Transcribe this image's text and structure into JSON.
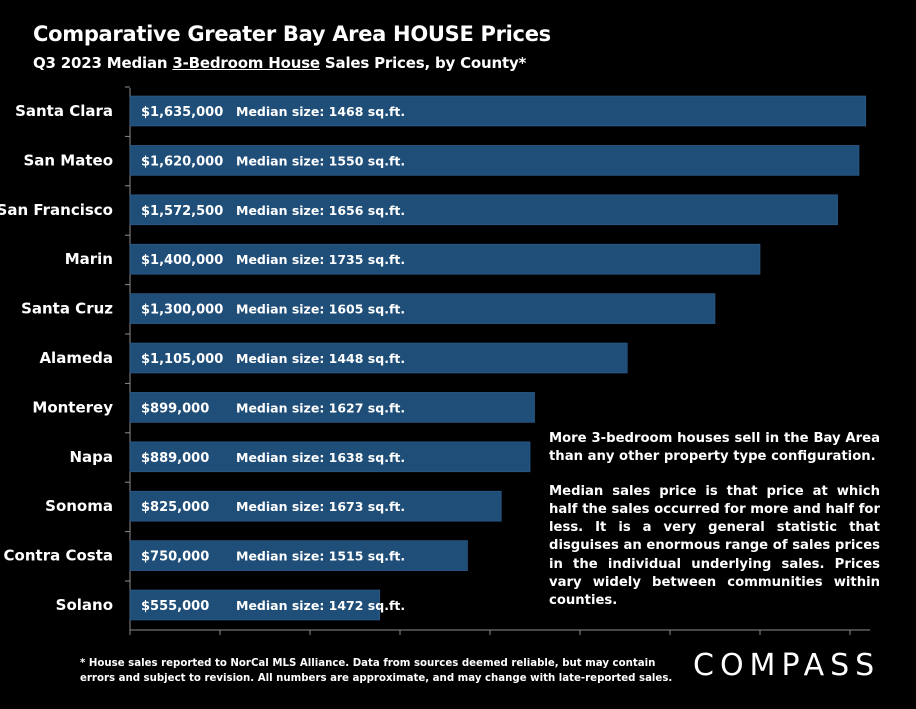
{
  "title": "Comparative Greater Bay Area HOUSE Prices",
  "subtitle": {
    "prefix": "Q3 2023 Median ",
    "underlined": "3-Bedroom House",
    "suffix": " Sales Prices, by County*"
  },
  "notes": [
    "More 3-bedroom houses sell in the Bay Area than any other property type configuration.",
    "Median sales price is that price at which half the sales occurred for more and half for less. It is a very general statistic that disguises an enormous range of sales prices in the individual underlying sales. Prices vary widely between communities within counties."
  ],
  "footnote": [
    "* House sales reported to NorCal MLS Alliance. Data from sources deemed reliable, but may contain",
    "errors and subject to revision. All numbers are approximate, and may change with late-reported sales."
  ],
  "logo": "COMPASS",
  "colors": {
    "bar": "#1f4e79",
    "bar_edge": "#2f5f8f",
    "axis": "#8c8c8c",
    "background": "#000000",
    "text": "#ffffff"
  },
  "chart_data": {
    "type": "bar",
    "orientation": "horizontal",
    "categories": [
      "Santa Clara",
      "San Mateo",
      "San Francisco",
      "Marin",
      "Santa Cruz",
      "Alameda",
      "Monterey",
      "Napa",
      "Sonoma",
      "Contra Costa",
      "Solano"
    ],
    "values": [
      1635000,
      1620000,
      1572500,
      1400000,
      1300000,
      1105000,
      899000,
      889000,
      825000,
      750000,
      555000
    ],
    "value_labels": [
      "$1,635,000",
      "$1,620,000",
      "$1,572,500",
      "$1,400,000",
      "$1,300,000",
      "$1,105,000",
      "$899,000",
      "$889,000",
      "$825,000",
      "$750,000",
      "$555,000"
    ],
    "size_labels": [
      "Median size: 1468 sq.ft.",
      "Median size: 1550 sq.ft.",
      "Median size: 1656 sq.ft.",
      "Median size: 1735 sq.ft.",
      "Median size: 1605 sq.ft.",
      "Median size: 1448 sq.ft.",
      "Median size: 1627 sq.ft.",
      "Median size: 1638 sq.ft.",
      "Median size: 1673 sq.ft.",
      "Median size: 1515 sq.ft.",
      "Median size: 1472 sq.ft."
    ],
    "xlim": [
      0,
      1600000
    ],
    "x_tick_step": 200000,
    "x_tick_labels_shown": false,
    "grid": false
  }
}
